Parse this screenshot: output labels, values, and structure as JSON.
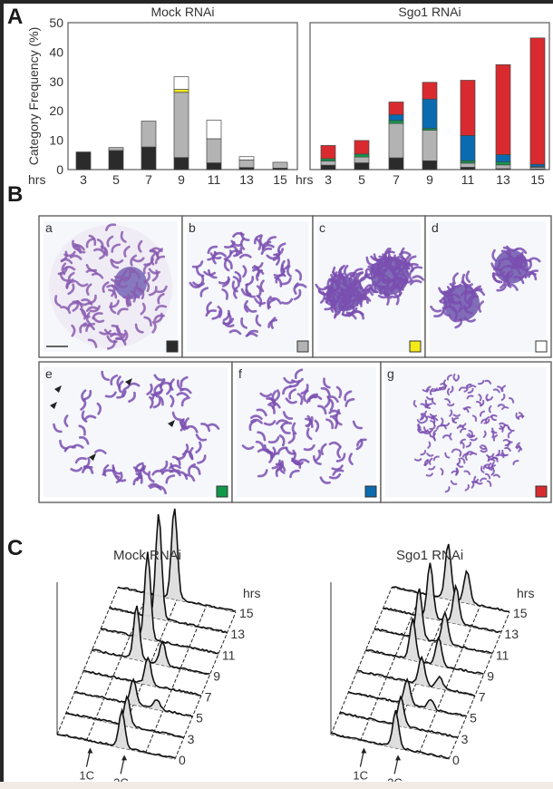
{
  "panel_labels": {
    "A": "A",
    "B": "B",
    "C": "C"
  },
  "colors": {
    "a": "#2b2b2b",
    "b": "#b3b3b3",
    "c": "#f4ea1a",
    "d": "#ffffff",
    "e": "#119a4a",
    "f": "#0b6bb0",
    "g": "#d92b2f",
    "micro": "#7a4fb0",
    "bg": "#edf0f7"
  },
  "chart_data": [
    {
      "type": "bar",
      "stacked": true,
      "title": "Mock RNAi",
      "ylabel": "Category Frequency (%)",
      "xlabel": "hrs",
      "ylim": [
        0,
        50
      ],
      "yticks": [
        "0",
        "10",
        "20",
        "30",
        "40",
        "50"
      ],
      "categories": [
        "3",
        "5",
        "7",
        "9",
        "11",
        "13",
        "15"
      ],
      "series": [
        {
          "name": "a",
          "values": [
            6.0,
            6.5,
            7.7,
            4.1,
            2.3,
            0.7,
            0.5
          ]
        },
        {
          "name": "b",
          "values": [
            0,
            1.0,
            8.8,
            22.2,
            8.2,
            2.6,
            2.0
          ]
        },
        {
          "name": "c",
          "values": [
            0,
            0,
            0,
            1.0,
            0,
            0,
            0
          ]
        },
        {
          "name": "d",
          "values": [
            0,
            0,
            0,
            4.3,
            6.3,
            1.1,
            0
          ]
        }
      ]
    },
    {
      "type": "bar",
      "stacked": true,
      "title": "Sgo1 RNAi",
      "xlabel": "hrs",
      "ylim": [
        0,
        50
      ],
      "categories": [
        "3",
        "5",
        "7",
        "9",
        "11",
        "13",
        "15"
      ],
      "series": [
        {
          "name": "a",
          "values": [
            1.5,
            2.3,
            4.0,
            3.0,
            0.8,
            0.3,
            0.2
          ]
        },
        {
          "name": "b",
          "values": [
            1.4,
            2.0,
            11.7,
            10.4,
            1.4,
            1.3,
            0.6
          ]
        },
        {
          "name": "e",
          "values": [
            0.8,
            1.0,
            1.0,
            0.6,
            0.8,
            1.0,
            0.2
          ]
        },
        {
          "name": "f",
          "values": [
            0,
            0,
            2.0,
            10.0,
            8.6,
            2.5,
            0.8
          ]
        },
        {
          "name": "g",
          "values": [
            4.5,
            4.6,
            4.3,
            5.7,
            18.8,
            30.6,
            43.0
          ]
        }
      ]
    },
    {
      "type": "area",
      "title": "Mock RNAi",
      "zlabel": "hrs",
      "times": [
        "0",
        "3",
        "5",
        "7",
        "9",
        "11",
        "13",
        "15"
      ],
      "markers": [
        "1C",
        "2C"
      ],
      "peaks": [
        [
          [
            0.55,
            40
          ]
        ],
        [
          [
            0.52,
            32
          ]
        ],
        [
          [
            0.5,
            28
          ],
          [
            0.7,
            10
          ]
        ],
        [
          [
            0.55,
            30
          ]
        ],
        [
          [
            0.38,
            60
          ],
          [
            0.6,
            25
          ]
        ],
        [
          [
            0.4,
            95
          ]
        ],
        [
          [
            0.42,
            115
          ]
        ],
        [
          [
            0.48,
            100
          ]
        ]
      ]
    },
    {
      "type": "area",
      "title": "Sgo1 RNAi",
      "zlabel": "hrs",
      "times": [
        "0",
        "3",
        "5",
        "7",
        "9",
        "11",
        "13",
        "15"
      ],
      "markers": [
        "1C",
        "2C"
      ],
      "peaks": [
        [
          [
            0.55,
            40
          ]
        ],
        [
          [
            0.52,
            32
          ]
        ],
        [
          [
            0.5,
            28
          ],
          [
            0.7,
            10
          ]
        ],
        [
          [
            0.55,
            30
          ],
          [
            0.7,
            12
          ]
        ],
        [
          [
            0.4,
            45
          ],
          [
            0.62,
            30
          ]
        ],
        [
          [
            0.38,
            55
          ],
          [
            0.6,
            35
          ]
        ],
        [
          [
            0.4,
            60
          ],
          [
            0.62,
            40
          ]
        ],
        [
          [
            0.48,
            60
          ],
          [
            0.64,
            35
          ]
        ]
      ]
    }
  ],
  "micrographs": [
    {
      "label": "a",
      "key": "a"
    },
    {
      "label": "b",
      "key": "b"
    },
    {
      "label": "c",
      "key": "c"
    },
    {
      "label": "d",
      "key": "d"
    },
    {
      "label": "e",
      "key": "e"
    },
    {
      "label": "f",
      "key": "f"
    },
    {
      "label": "g",
      "key": "g"
    }
  ]
}
